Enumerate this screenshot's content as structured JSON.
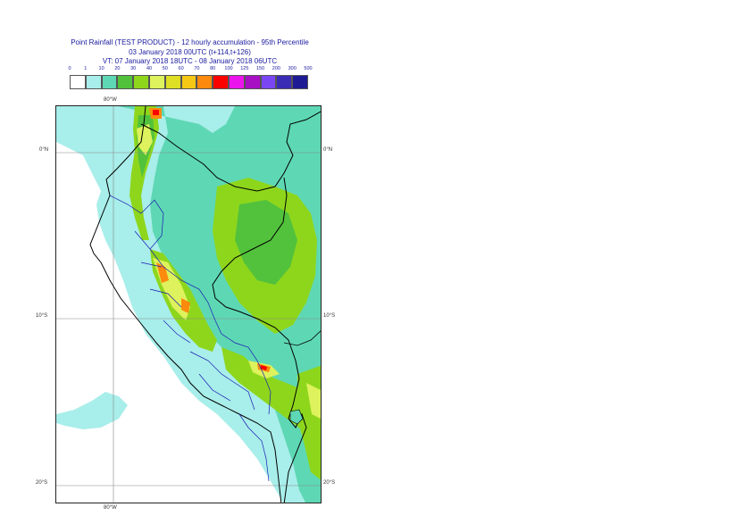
{
  "title": {
    "line1": "Point Rainfall (TEST PRODUCT) - 12 hourly accumulation - 95th Percentile",
    "line2": "03 January 2018 00UTC (t+114,t+126)",
    "line3": "VT: 07 January 2018 18UTC - 08 January 2018 06UTC"
  },
  "legend": {
    "thresholds": [
      "0",
      "1",
      "10",
      "20",
      "30",
      "40",
      "50",
      "60",
      "70",
      "80",
      "100",
      "125",
      "150",
      "200",
      "300",
      "500"
    ],
    "colors": [
      "#ffffff",
      "#a8eeea",
      "#5ed8b4",
      "#52c23c",
      "#8ed61c",
      "#ddf25c",
      "#dede24",
      "#f4c814",
      "#fc8a0c",
      "#fc0000",
      "#ec14ec",
      "#a810c4",
      "#7a46f4",
      "#3a2cb4",
      "#1e1a94"
    ]
  },
  "map": {
    "lat_labels": {
      "top": "0°N",
      "mid": "10°S",
      "bottom": "20°S"
    },
    "lon_label": "80°W",
    "colors": {
      "ocean": "#ffffff",
      "coast_land": "#a8eeea",
      "mid_land": "#5ed8b4",
      "green": "#8ed61c",
      "dark_green": "#52c23c",
      "yellow": "#ddf25c",
      "orange": "#fc8a0c",
      "red": "#fc0000",
      "border_black": "#000000",
      "border_blue": "#1a1ab4",
      "grid": "#888888"
    }
  }
}
